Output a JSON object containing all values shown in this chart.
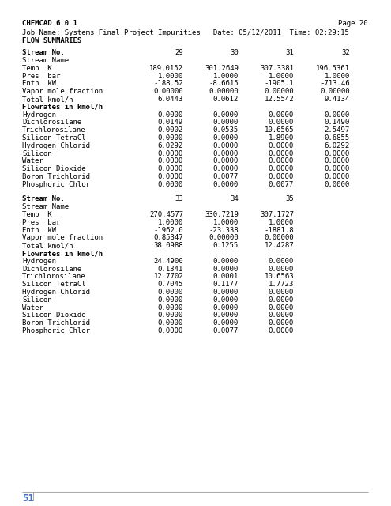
{
  "header_left": "CHEMCAD 6.0.1",
  "header_right": "Page 20",
  "job_line": "Job Name: Systems Final Project Impurities   Date: 05/12/2011  Time: 02:29:15",
  "flow_label": "FLOW SUMMARIES",
  "page_number": "51",
  "bg_color": "#ffffff",
  "text_color": "#000000",
  "page_num_color": "#4472c4",
  "line_color": "#aaaaaa",
  "font_size": 6.5,
  "section1": {
    "rows": [
      [
        "Stream No.",
        "29",
        "30",
        "31",
        "32"
      ],
      [
        "Stream Name",
        "",
        "",
        "",
        ""
      ],
      [
        "Temp  K",
        "189.0152",
        "301.2649",
        "307.3381",
        "196.5361"
      ],
      [
        "Pres  bar",
        "1.0000",
        "1.0000",
        "1.0000",
        "1.0000"
      ],
      [
        "Enth  kW",
        "-188.52",
        "-8.6615",
        "-1905.1",
        "-713.46"
      ],
      [
        "Vapor mole fraction",
        "0.00000",
        "0.00000",
        "0.00000",
        "0.00000"
      ],
      [
        "Total kmol/h",
        "6.0443",
        "0.0612",
        "12.5542",
        "9.4134"
      ],
      [
        "Flowrates in kmol/h",
        "",
        "",
        "",
        ""
      ],
      [
        "Hydrogen",
        "0.0000",
        "0.0000",
        "0.0000",
        "0.0000"
      ],
      [
        "Dichlorosilane",
        "0.0149",
        "0.0000",
        "0.0000",
        "0.1490"
      ],
      [
        "Trichlorosilane",
        "0.0002",
        "0.0535",
        "10.6565",
        "2.5497"
      ],
      [
        "Silicon TetraCl",
        "0.0000",
        "0.0000",
        "1.8900",
        "0.6855"
      ],
      [
        "Hydrogen Chlorid",
        "6.0292",
        "0.0000",
        "0.0000",
        "6.0292"
      ],
      [
        "Silicon",
        "0.0000",
        "0.0000",
        "0.0000",
        "0.0000"
      ],
      [
        "Water",
        "0.0000",
        "0.0000",
        "0.0000",
        "0.0000"
      ],
      [
        "Silicon Dioxide",
        "0.0000",
        "0.0000",
        "0.0000",
        "0.0000"
      ],
      [
        "Boron Trichlorid",
        "0.0000",
        "0.0077",
        "0.0000",
        "0.0000"
      ],
      [
        "Phosphoric Chlor",
        "0.0000",
        "0.0000",
        "0.0077",
        "0.0000"
      ]
    ]
  },
  "section2": {
    "rows": [
      [
        "Stream No.",
        "33",
        "34",
        "35",
        ""
      ],
      [
        "Stream Name",
        "",
        "",
        "",
        ""
      ],
      [
        "Temp  K",
        "270.4577",
        "330.7219",
        "307.1727",
        ""
      ],
      [
        "Pres  bar",
        "1.0000",
        "1.0000",
        "1.0000",
        ""
      ],
      [
        "Enth  kW",
        "-1962.0",
        "-23.338",
        "-1881.8",
        ""
      ],
      [
        "Vapor mole fraction",
        "0.85347",
        "0.00000",
        "0.00000",
        ""
      ],
      [
        "Total kmol/h",
        "38.0988",
        "0.1255",
        "12.4287",
        ""
      ],
      [
        "Flowrates in kmol/h",
        "",
        "",
        "",
        ""
      ],
      [
        "Hydrogen",
        "24.4900",
        "0.0000",
        "0.0000",
        ""
      ],
      [
        "Dichlorosilane",
        "0.1341",
        "0.0000",
        "0.0000",
        ""
      ],
      [
        "Trichlorosilane",
        "12.7702",
        "0.0001",
        "10.6563",
        ""
      ],
      [
        "Silicon TetraCl",
        "0.7045",
        "0.1177",
        "1.7723",
        ""
      ],
      [
        "Hydrogen Chlorid",
        "0.0000",
        "0.0000",
        "0.0000",
        ""
      ],
      [
        "Silicon",
        "0.0000",
        "0.0000",
        "0.0000",
        ""
      ],
      [
        "Water",
        "0.0000",
        "0.0000",
        "0.0000",
        ""
      ],
      [
        "Silicon Dioxide",
        "0.0000",
        "0.0000",
        "0.0000",
        ""
      ],
      [
        "Boron Trichlorid",
        "0.0000",
        "0.0000",
        "0.0000",
        ""
      ],
      [
        "Phosphoric Chlor",
        "0.0000",
        "0.0077",
        "0.0000",
        ""
      ]
    ]
  }
}
